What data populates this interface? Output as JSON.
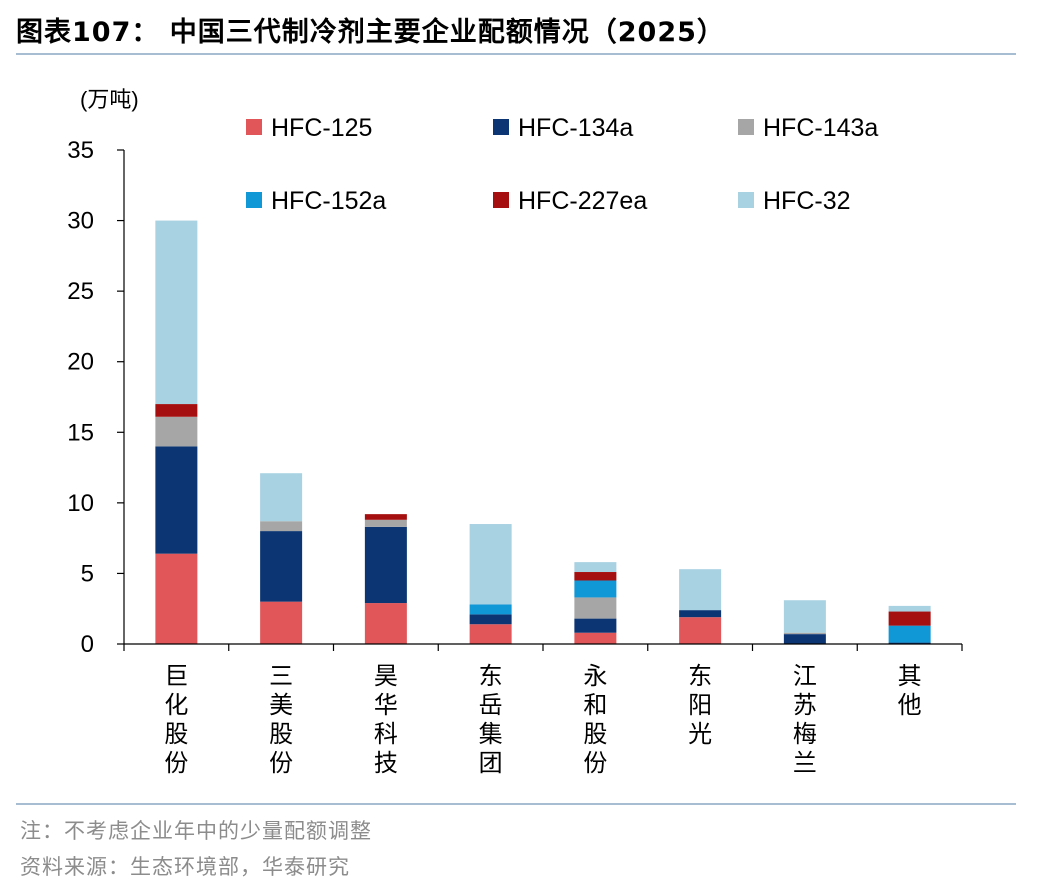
{
  "header": {
    "title": "图表107：  中国三代制冷剂主要企业配额情况（2025）"
  },
  "chart_data": {
    "type": "stacked-bar",
    "unit_label": "(万吨)",
    "ylim": [
      0,
      35
    ],
    "yticks": [
      0,
      5,
      10,
      15,
      20,
      25,
      30,
      35
    ],
    "categories": [
      "巨化股份",
      "三美股份",
      "昊华科技",
      "东岳集团",
      "永和股份",
      "东阳光",
      "江苏梅兰",
      "其他"
    ],
    "series": [
      {
        "name": "HFC-125",
        "color": "#e15759",
        "values": [
          6.4,
          3.0,
          2.9,
          1.4,
          0.8,
          1.9,
          0.0,
          0.0
        ]
      },
      {
        "name": "HFC-134a",
        "color": "#0b3573",
        "values": [
          7.6,
          5.0,
          5.4,
          0.7,
          1.0,
          0.5,
          0.7,
          0.1
        ]
      },
      {
        "name": "HFC-143a",
        "color": "#a6a6a6",
        "values": [
          2.1,
          0.7,
          0.5,
          0.0,
          1.5,
          0.0,
          0.1,
          0.0
        ]
      },
      {
        "name": "HFC-152a",
        "color": "#1097d5",
        "values": [
          0.0,
          0.0,
          0.0,
          0.7,
          1.2,
          0.0,
          0.0,
          1.2
        ]
      },
      {
        "name": "HFC-227ea",
        "color": "#a50f0f",
        "values": [
          0.9,
          0.0,
          0.4,
          0.0,
          0.6,
          0.0,
          0.0,
          1.0
        ]
      },
      {
        "name": "HFC-32",
        "color": "#a8d1e2",
        "values": [
          13.0,
          3.4,
          0.0,
          5.7,
          0.7,
          2.9,
          2.3,
          0.4
        ]
      }
    ]
  },
  "footer": {
    "note": "注：不考虑企业年中的少量配额调整",
    "source": "资料来源：生态环境部，华泰研究"
  }
}
